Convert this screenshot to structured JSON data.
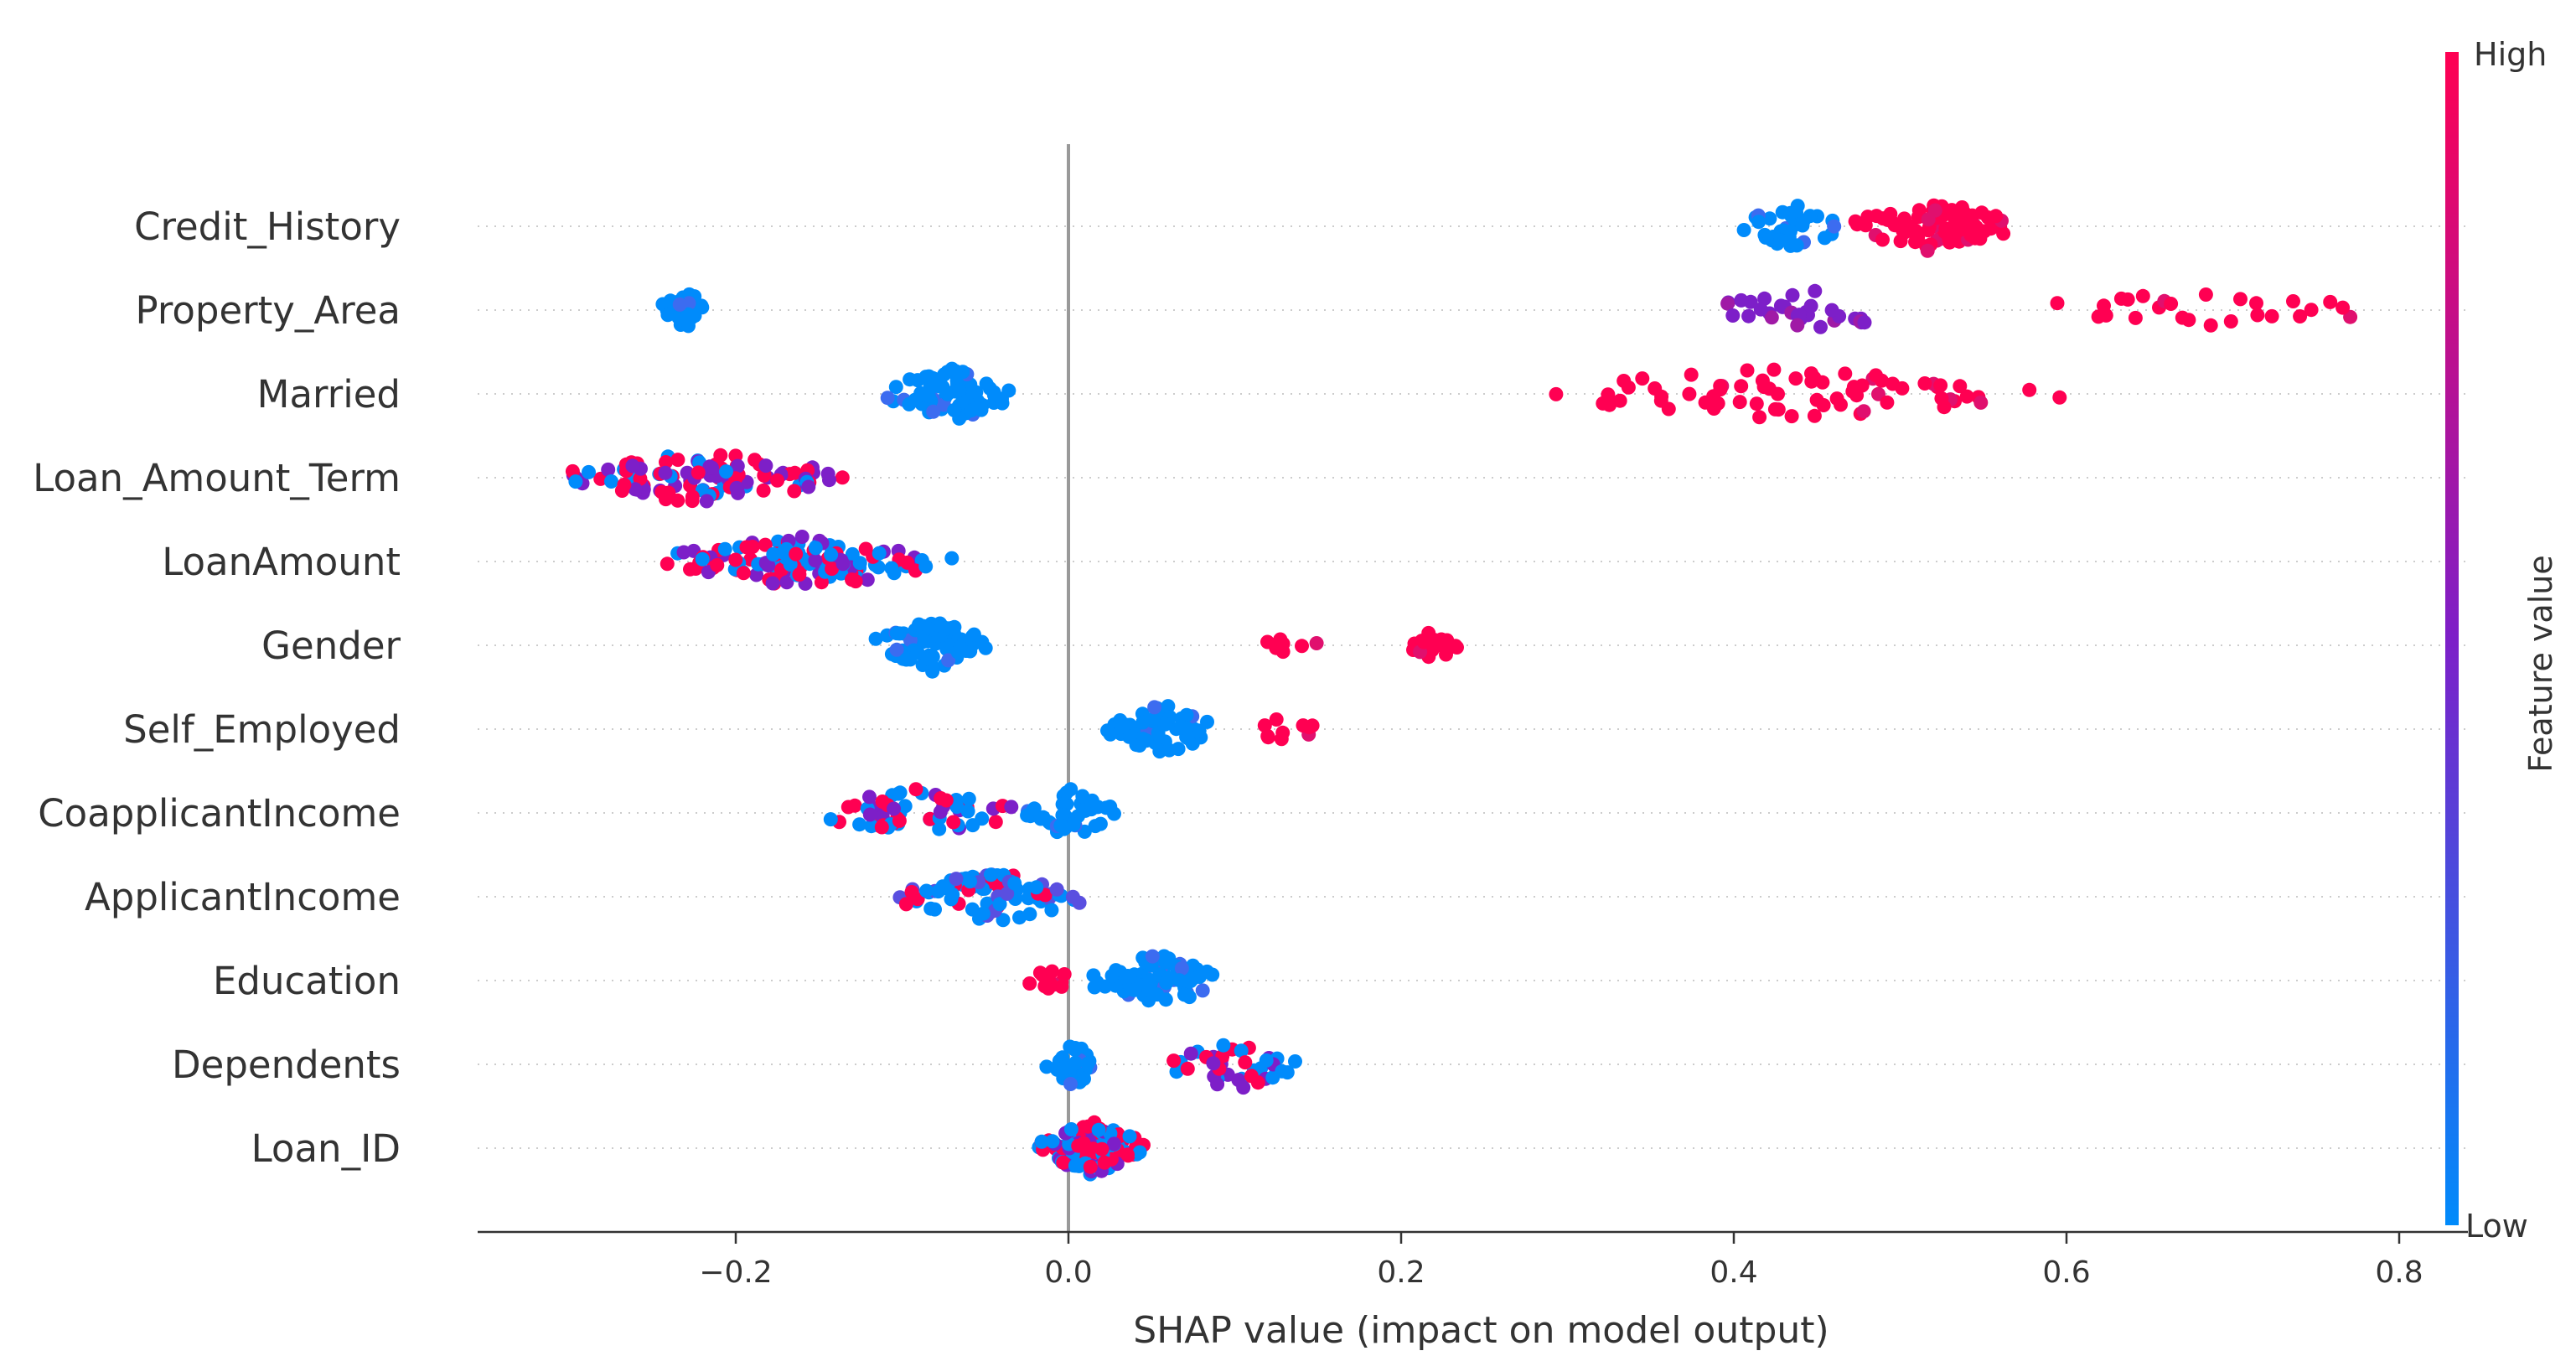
{
  "chart_data": {
    "type": "scatter",
    "subtype": "shap-beeswarm-summary",
    "title": "",
    "xlabel": "SHAP value (impact on model output)",
    "ylabel": "",
    "xlim": [
      -0.355,
      0.85
    ],
    "xticks": [
      -0.2,
      0.0,
      0.2,
      0.4,
      0.6,
      0.8
    ],
    "xtick_labels": [
      "−0.2",
      "0.0",
      "0.2",
      "0.4",
      "0.6",
      "0.8"
    ],
    "zero_line": 0.0,
    "grid": "dotted horizontal row guides",
    "colorbar": {
      "label": "Feature value",
      "high_label": "High",
      "low_label": "Low",
      "high_color": "#ff0052",
      "mid_color": "#7d1fc8",
      "low_color": "#008bfb",
      "placement": "right"
    },
    "features": [
      {
        "name": "Credit_History",
        "clusters": [
          {
            "from": 0.4,
            "to": 0.47,
            "count": 38,
            "color": "low"
          },
          {
            "from": 0.47,
            "to": 0.57,
            "count": 80,
            "color": "high"
          }
        ]
      },
      {
        "name": "Property_Area",
        "clusters": [
          {
            "from": -0.245,
            "to": -0.215,
            "count": 28,
            "color": "low"
          },
          {
            "from": 0.38,
            "to": 0.51,
            "count": 32,
            "color": "mid"
          },
          {
            "from": 0.57,
            "to": 0.81,
            "count": 26,
            "color": "high"
          }
        ]
      },
      {
        "name": "Married",
        "clusters": [
          {
            "from": -0.115,
            "to": -0.025,
            "count": 70,
            "color": "low"
          },
          {
            "from": 0.265,
            "to": 0.6,
            "count": 72,
            "color": "high"
          }
        ]
      },
      {
        "name": "Loan_Amount_Term",
        "clusters": [
          {
            "from": -0.31,
            "to": -0.13,
            "count": 110,
            "color": "mixed-high"
          }
        ]
      },
      {
        "name": "LoanAmount",
        "clusters": [
          {
            "from": -0.25,
            "to": -0.065,
            "count": 120,
            "color": "mixed"
          }
        ]
      },
      {
        "name": "Gender",
        "clusters": [
          {
            "from": -0.12,
            "to": -0.045,
            "count": 80,
            "color": "low"
          },
          {
            "from": 0.105,
            "to": 0.155,
            "count": 8,
            "color": "high"
          },
          {
            "from": 0.2,
            "to": 0.235,
            "count": 18,
            "color": "high"
          }
        ]
      },
      {
        "name": "Self_Employed",
        "clusters": [
          {
            "from": 0.02,
            "to": 0.09,
            "count": 60,
            "color": "low"
          },
          {
            "from": 0.105,
            "to": 0.15,
            "count": 10,
            "color": "high"
          }
        ]
      },
      {
        "name": "CoapplicantIncome",
        "clusters": [
          {
            "from": -0.15,
            "to": -0.03,
            "count": 55,
            "color": "mixed"
          },
          {
            "from": -0.03,
            "to": 0.03,
            "count": 45,
            "color": "low"
          }
        ]
      },
      {
        "name": "ApplicantIncome",
        "clusters": [
          {
            "from": -0.105,
            "to": 0.018,
            "count": 85,
            "color": "mixed-low"
          }
        ]
      },
      {
        "name": "Education",
        "clusters": [
          {
            "from": -0.025,
            "to": 0.005,
            "count": 12,
            "color": "high"
          },
          {
            "from": 0.01,
            "to": 0.095,
            "count": 80,
            "color": "low"
          }
        ]
      },
      {
        "name": "Dependents",
        "clusters": [
          {
            "from": -0.015,
            "to": 0.018,
            "count": 35,
            "color": "low"
          },
          {
            "from": 0.055,
            "to": 0.145,
            "count": 40,
            "color": "mixed"
          }
        ]
      },
      {
        "name": "Loan_ID",
        "clusters": [
          {
            "from": -0.02,
            "to": 0.048,
            "count": 120,
            "color": "mixed"
          }
        ]
      }
    ]
  }
}
